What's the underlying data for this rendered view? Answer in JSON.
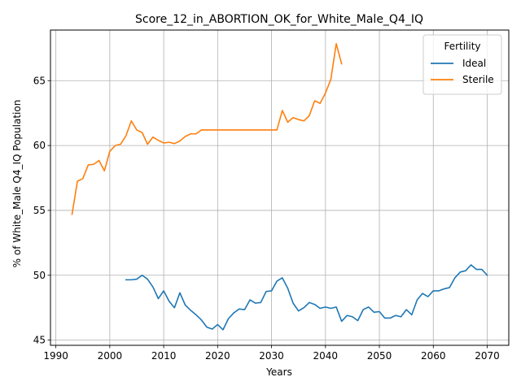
{
  "chart_data": {
    "type": "line",
    "title": "Score_12_in_ABORTION_OK_for_White_Male_Q4_IQ",
    "xlabel": "Years",
    "ylabel": "% of White_Male Q4_IQ Population",
    "xlim": [
      1989,
      2074
    ],
    "ylim": [
      44.6,
      68.9
    ],
    "xticks": [
      1990,
      2000,
      2010,
      2020,
      2030,
      2040,
      2050,
      2060,
      2070
    ],
    "yticks": [
      45,
      50,
      55,
      60,
      65
    ],
    "grid": true,
    "legend": {
      "title": "Fertility",
      "position": "top-right"
    },
    "series": [
      {
        "name": "Ideal",
        "color": "#1f77b4",
        "x": [
          2003,
          2004,
          2005,
          2006,
          2007,
          2008,
          2009,
          2010,
          2011,
          2012,
          2013,
          2014,
          2015,
          2016,
          2017,
          2018,
          2019,
          2020,
          2021,
          2022,
          2023,
          2024,
          2025,
          2026,
          2027,
          2028,
          2029,
          2030,
          2031,
          2032,
          2033,
          2034,
          2035,
          2036,
          2037,
          2038,
          2039,
          2040,
          2041,
          2042,
          2043,
          2044,
          2045,
          2046,
          2047,
          2048,
          2049,
          2050,
          2051,
          2052,
          2053,
          2054,
          2055,
          2056,
          2057,
          2058,
          2059,
          2060,
          2061,
          2062,
          2063,
          2064,
          2065,
          2066,
          2067,
          2068,
          2069,
          2070
        ],
        "y": [
          49.65,
          49.65,
          49.7,
          50.0,
          49.7,
          49.1,
          48.2,
          48.8,
          48.0,
          47.5,
          48.65,
          47.7,
          47.3,
          46.95,
          46.55,
          46.0,
          45.85,
          46.2,
          45.8,
          46.65,
          47.1,
          47.4,
          47.35,
          48.1,
          47.85,
          47.9,
          48.75,
          48.8,
          49.55,
          49.8,
          49.0,
          47.85,
          47.25,
          47.5,
          47.9,
          47.75,
          47.45,
          47.55,
          47.45,
          47.55,
          46.45,
          46.9,
          46.8,
          46.5,
          47.35,
          47.55,
          47.15,
          47.2,
          46.7,
          46.7,
          46.9,
          46.8,
          47.35,
          46.95,
          48.1,
          48.6,
          48.35,
          48.8,
          48.8,
          48.95,
          49.05,
          49.8,
          50.25,
          50.35,
          50.8,
          50.45,
          50.45,
          50.0
        ]
      },
      {
        "name": "Sterile",
        "color": "#ff7f0e",
        "x": [
          1993,
          1994,
          1995,
          1996,
          1997,
          1998,
          1999,
          2000,
          2001,
          2002,
          2003,
          2004,
          2005,
          2006,
          2007,
          2008,
          2009,
          2010,
          2011,
          2012,
          2013,
          2014,
          2015,
          2016,
          2017,
          2018,
          2019,
          2020,
          2021,
          2022,
          2023,
          2024,
          2025,
          2026,
          2027,
          2028,
          2029,
          2030,
          2031,
          2032,
          2033,
          2034,
          2035,
          2036,
          2037,
          2038,
          2039,
          2040,
          2041,
          2042,
          2043
        ],
        "y": [
          54.7,
          57.25,
          57.45,
          58.5,
          58.55,
          58.85,
          58.05,
          59.55,
          60.0,
          60.1,
          60.75,
          61.9,
          61.2,
          61.0,
          60.1,
          60.65,
          60.4,
          60.2,
          60.25,
          60.15,
          60.35,
          60.7,
          60.9,
          60.9,
          61.2,
          61.2,
          61.2,
          61.2,
          61.2,
          61.2,
          61.2,
          61.2,
          61.2,
          61.2,
          61.2,
          61.2,
          61.2,
          61.2,
          61.2,
          62.7,
          61.8,
          62.15,
          62.0,
          61.9,
          62.3,
          63.45,
          63.25,
          64.05,
          65.1,
          67.85,
          66.3
        ]
      }
    ]
  }
}
